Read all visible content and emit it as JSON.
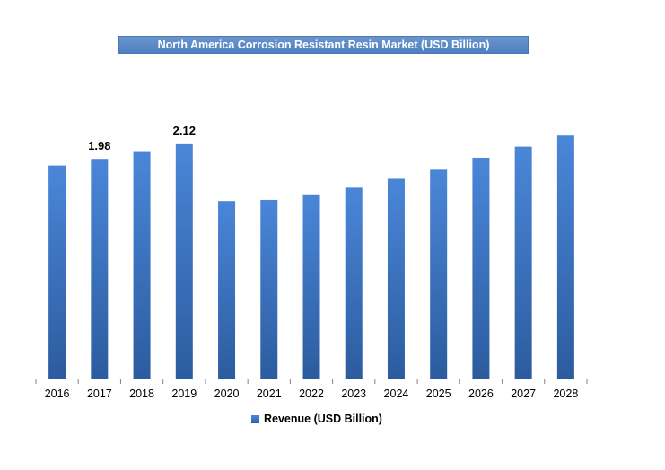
{
  "chart_data": {
    "type": "bar",
    "title": "North America Corrosion Resistant Resin Market (USD Billion)",
    "categories": [
      "2016",
      "2017",
      "2018",
      "2019",
      "2020",
      "2021",
      "2022",
      "2023",
      "2024",
      "2025",
      "2026",
      "2027",
      "2028"
    ],
    "series": [
      {
        "name": "Revenue (USD Billion)",
        "values": [
          1.92,
          1.98,
          2.05,
          2.12,
          1.6,
          1.61,
          1.66,
          1.72,
          1.8,
          1.89,
          1.99,
          2.09,
          2.19
        ],
        "data_labels": [
          "",
          "1.98",
          "",
          "2.12",
          "",
          "",
          "",
          "",
          "",
          "",
          "",
          "",
          ""
        ]
      }
    ],
    "xlabel": "",
    "ylabel": "",
    "ylim": [
      0,
      2.2
    ],
    "grid": false,
    "legend_position": "bottom",
    "bar_color_top": "#4a86d8",
    "bar_color_bottom": "#2c5c9f"
  }
}
